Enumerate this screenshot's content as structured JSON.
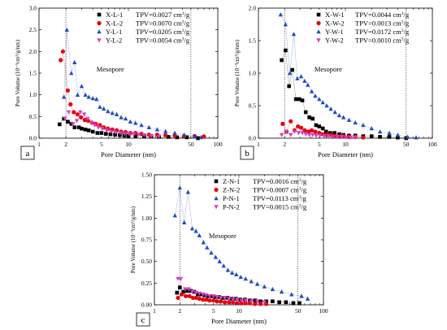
{
  "chart_data": [
    {
      "type": "scatter",
      "panel": "a",
      "xlabel": "Pore Diameter (nm)",
      "ylabel": "Pore Volume (10⁻³cm³/g/nm)",
      "xscale": "log",
      "xlim": [
        1,
        100
      ],
      "ylim": [
        0,
        3.0
      ],
      "xticks": [
        1,
        2,
        5,
        10,
        50,
        100
      ],
      "yticks": [
        0.0,
        0.5,
        1.0,
        1.5,
        2.0,
        2.5,
        3.0
      ],
      "ytick_labels": [
        "0.0",
        "0.5",
        "1.0",
        "1.5",
        "2.0",
        "2.5",
        "3.0"
      ],
      "vlines": [
        2,
        50
      ],
      "annotation": "Mesopore",
      "legend_position": "top-right",
      "series": [
        {
          "name": "X-L-1",
          "tpv": "TPV=0.0027 cm",
          "tpv_sup": "3",
          "tpv_unit": "/g",
          "marker": "square",
          "color": "#000000",
          "x": [
            1.7,
            1.9,
            2.1,
            2.3,
            2.5,
            2.8,
            3.0,
            3.3,
            3.6,
            4.0,
            4.5,
            5.0,
            5.6,
            6.3,
            7.1,
            8.0,
            9.0,
            10.0,
            12.0,
            15.0,
            18.0,
            22.0,
            28.0,
            35.0,
            45.0,
            60.0
          ],
          "y": [
            0.32,
            0.45,
            0.38,
            0.33,
            0.25,
            0.25,
            0.22,
            0.2,
            0.18,
            0.15,
            0.12,
            0.12,
            0.1,
            0.09,
            0.08,
            0.07,
            0.06,
            0.05,
            0.05,
            0.04,
            0.04,
            0.03,
            0.03,
            0.02,
            0.02,
            0.0
          ]
        },
        {
          "name": "X-L-2",
          "tpv": "TPV=0.0070 cm",
          "tpv_sup": "3",
          "tpv_unit": "/g",
          "marker": "circle",
          "color": "#e8000b",
          "x": [
            1.75,
            1.85,
            2.1,
            2.25,
            2.45,
            2.7,
            2.95,
            3.25,
            3.55,
            3.9,
            4.3,
            4.8,
            5.3,
            5.9,
            6.6,
            7.4,
            8.3,
            9.3,
            10.5,
            12.0,
            14.0,
            17.0,
            21.0,
            26.0,
            33.0,
            42.0,
            55.0,
            70.0
          ],
          "y": [
            1.8,
            2.0,
            1.1,
            0.78,
            0.6,
            0.55,
            0.48,
            0.42,
            0.4,
            0.36,
            0.33,
            0.3,
            0.25,
            0.22,
            0.2,
            0.18,
            0.15,
            0.14,
            0.12,
            0.12,
            0.1,
            0.08,
            0.08,
            0.07,
            0.06,
            0.05,
            0.05,
            0.04
          ]
        },
        {
          "name": "Y-L-1",
          "tpv": "TPV=0.0205 cm",
          "tpv_sup": "3",
          "tpv_unit": "/g",
          "marker": "triangle-up",
          "color": "#1f4fbf",
          "x": [
            1.9,
            2.05,
            2.3,
            2.5,
            2.7,
            3.0,
            3.3,
            3.6,
            4.0,
            4.4,
            4.8,
            5.3,
            5.9,
            6.6,
            7.4,
            8.3,
            9.3,
            10.5,
            12.0,
            14.0,
            17.0,
            21.0,
            26.0,
            33.0,
            42.0,
            55.0,
            65.0
          ],
          "y": [
            0.95,
            2.5,
            1.5,
            1.75,
            1.0,
            1.2,
            1.0,
            0.95,
            0.92,
            0.9,
            0.72,
            0.68,
            0.62,
            0.58,
            0.55,
            0.48,
            0.45,
            0.38,
            0.35,
            0.3,
            0.25,
            0.2,
            0.16,
            0.12,
            0.08,
            0.04,
            0.02
          ]
        },
        {
          "name": "Y-L-2",
          "tpv": "TPV=0.0054 cm",
          "tpv_sup": "3",
          "tpv_unit": "/g",
          "marker": "triangle-down",
          "color": "#d43fc4",
          "x": [
            1.95,
            2.15,
            2.4,
            2.65,
            2.9,
            3.2,
            3.5,
            3.85,
            4.2,
            4.6,
            5.1,
            5.7,
            6.4,
            7.2,
            8.1,
            9.1,
            10.2,
            11.5,
            13.0,
            15.0,
            18.0,
            22.0
          ],
          "y": [
            0.45,
            0.6,
            0.32,
            0.4,
            0.6,
            0.55,
            0.45,
            0.35,
            0.3,
            0.25,
            0.22,
            0.18,
            0.15,
            0.13,
            0.12,
            0.1,
            0.1,
            0.09,
            0.08,
            0.07,
            0.05,
            0.04
          ]
        }
      ]
    },
    {
      "type": "scatter",
      "panel": "b",
      "xlabel": "Pore Diameter (nm)",
      "ylabel": "Pore Volume (10⁻³cm³/g/nm)",
      "xscale": "log",
      "xlim": [
        1,
        100
      ],
      "ylim": [
        0,
        2.0
      ],
      "xticks": [
        1,
        2,
        5,
        10,
        50,
        100
      ],
      "yticks": [
        0.0,
        0.5,
        1.0,
        1.5,
        2.0
      ],
      "ytick_labels": [
        "0.0",
        "0.5",
        "1.0",
        "1.5",
        "2.0"
      ],
      "vlines": [
        2,
        50
      ],
      "annotation": "Mesopore",
      "legend_position": "top-right",
      "series": [
        {
          "name": "X-W-1",
          "tpv": "TPV=0.0044 cm",
          "tpv_sup": "3",
          "tpv_unit": "/g",
          "marker": "square",
          "color": "#000000",
          "x": [
            1.85,
            2.05,
            2.25,
            2.45,
            2.7,
            2.95,
            3.2,
            3.5,
            3.85,
            4.2,
            4.6,
            5.0,
            5.5,
            6.0,
            6.7,
            7.5,
            8.5,
            9.5,
            11.0,
            13.0,
            16.0,
            20.0,
            25.0,
            32.0,
            40.0,
            50.0
          ],
          "y": [
            1.2,
            1.35,
            0.8,
            1.05,
            0.6,
            0.6,
            0.58,
            0.4,
            0.32,
            0.3,
            0.2,
            0.18,
            0.15,
            0.1,
            0.08,
            0.08,
            0.06,
            0.05,
            0.04,
            0.04,
            0.03,
            0.03,
            0.02,
            0.02,
            0.01,
            0.0
          ]
        },
        {
          "name": "X-W-2",
          "tpv": "TPV=0.0013 cm",
          "tpv_sup": "3",
          "tpv_unit": "/g",
          "marker": "circle",
          "color": "#e8000b",
          "x": [
            1.9,
            2.1,
            2.35,
            2.6,
            2.85,
            3.1,
            3.4,
            3.75,
            4.1,
            4.5,
            5.0,
            5.5,
            6.1,
            6.8,
            7.6,
            8.5,
            9.5,
            11.0,
            13.0,
            16.0
          ],
          "y": [
            0.22,
            0.1,
            0.26,
            0.12,
            0.18,
            0.16,
            0.12,
            0.1,
            0.12,
            0.1,
            0.08,
            0.06,
            0.05,
            0.05,
            0.04,
            0.03,
            0.03,
            0.02,
            0.02,
            0.01
          ]
        },
        {
          "name": "Y-W-1",
          "tpv": "TPV=0.0172 cm",
          "tpv_sup": "3",
          "tpv_unit": "/g",
          "marker": "triangle-up",
          "color": "#1f4fbf",
          "x": [
            1.8,
            2.05,
            2.3,
            2.55,
            2.8,
            3.1,
            3.4,
            3.7,
            4.1,
            4.5,
            5.0,
            5.5,
            6.1,
            6.8,
            7.6,
            8.5,
            9.5,
            11.0,
            13.0,
            16.0,
            20.0,
            25.0,
            32.0,
            40.0,
            52.0,
            65.0
          ],
          "y": [
            1.9,
            1.75,
            1.0,
            1.6,
            0.92,
            0.95,
            0.88,
            0.82,
            0.72,
            0.65,
            0.6,
            0.55,
            0.5,
            0.45,
            0.4,
            0.35,
            0.32,
            0.28,
            0.24,
            0.2,
            0.15,
            0.1,
            0.08,
            0.05,
            0.02,
            0.01
          ]
        },
        {
          "name": "Y-W-2",
          "tpv": "TPV=0.0010 cm",
          "tpv_sup": "3",
          "tpv_unit": "/g",
          "marker": "triangle-down",
          "color": "#d43fc4",
          "x": [
            1.85,
            2.1,
            2.35,
            2.6,
            2.9,
            3.2,
            3.5,
            3.85,
            4.2,
            4.6,
            5.1,
            5.7,
            6.4,
            7.2,
            8.1,
            9.1,
            10.2,
            11.5,
            13.0
          ],
          "y": [
            0.05,
            0.1,
            0.05,
            0.1,
            0.08,
            0.08,
            0.06,
            0.05,
            0.05,
            0.04,
            0.04,
            0.03,
            0.03,
            0.02,
            0.02,
            0.02,
            0.01,
            0.01,
            0.01
          ]
        }
      ]
    },
    {
      "type": "scatter",
      "panel": "c",
      "xlabel": "Pore Diameter (nm)",
      "ylabel": "Pore Volume (10⁻³cm³/g/nm)",
      "xscale": "log",
      "xlim": [
        1,
        100
      ],
      "ylim": [
        0,
        1.5
      ],
      "xticks": [
        1,
        2,
        5,
        10,
        50,
        100
      ],
      "yticks": [
        0.0,
        0.25,
        0.5,
        0.75,
        1.0,
        1.25,
        1.5
      ],
      "ytick_labels": [
        "0.00",
        "0.25",
        "0.50",
        "0.75",
        "1.00",
        "1.25",
        "1.50"
      ],
      "vlines": [
        2,
        50
      ],
      "annotation": "Mesopore",
      "legend_position": "top-right",
      "series": [
        {
          "name": "Z-N-1",
          "tpv": "TPV=0.0016 cm",
          "tpv_sup": "3",
          "tpv_unit": "/g",
          "marker": "square",
          "color": "#000000",
          "x": [
            1.85,
            2.0,
            2.2,
            2.45,
            2.7,
            2.95,
            3.25,
            3.55,
            3.9,
            4.3,
            4.7,
            5.2,
            5.8,
            6.5,
            7.3,
            8.2,
            9.2,
            10.4,
            11.8,
            13.5,
            15.5,
            18.0,
            21.0,
            25.0,
            30.0,
            36.0,
            44.0,
            52.0
          ],
          "y": [
            0.14,
            0.2,
            0.15,
            0.16,
            0.16,
            0.15,
            0.12,
            0.12,
            0.11,
            0.1,
            0.1,
            0.09,
            0.09,
            0.08,
            0.08,
            0.07,
            0.07,
            0.06,
            0.06,
            0.05,
            0.05,
            0.04,
            0.04,
            0.04,
            0.03,
            0.03,
            0.02,
            0.02
          ]
        },
        {
          "name": "Z-N-2",
          "tpv": "TPV=0.0007 cm",
          "tpv_sup": "3",
          "tpv_unit": "/g",
          "marker": "circle",
          "color": "#e8000b",
          "x": [
            1.9,
            2.1,
            2.35,
            2.6,
            2.85,
            3.1,
            3.4,
            3.75,
            4.1,
            4.5,
            5.0,
            5.5,
            6.1,
            6.8,
            7.6,
            8.5,
            9.5,
            10.7,
            12.0,
            13.5,
            15.5,
            18.0,
            21.0
          ],
          "y": [
            0.08,
            0.12,
            0.1,
            0.1,
            0.08,
            0.08,
            0.07,
            0.06,
            0.06,
            0.05,
            0.05,
            0.04,
            0.04,
            0.03,
            0.03,
            0.03,
            0.02,
            0.02,
            0.02,
            0.02,
            0.01,
            0.01,
            0.01
          ]
        },
        {
          "name": "P-N-1",
          "tpv": "TPV=0.0113 cm",
          "tpv_sup": "3",
          "tpv_unit": "/g",
          "marker": "triangle-up",
          "color": "#1f4fbf",
          "x": [
            1.75,
            2.0,
            2.25,
            2.5,
            2.8,
            3.1,
            3.4,
            3.8,
            4.2,
            4.7,
            5.3,
            5.9,
            6.6,
            7.4,
            8.3,
            9.3,
            10.5,
            12.0,
            14.0,
            16.5,
            20.0,
            25.0,
            32.0,
            42.0,
            55.0,
            65.0
          ],
          "y": [
            1.03,
            1.35,
            0.95,
            1.3,
            0.88,
            0.85,
            0.8,
            0.72,
            0.66,
            0.6,
            0.55,
            0.5,
            0.45,
            0.4,
            0.37,
            0.35,
            0.32,
            0.3,
            0.27,
            0.24,
            0.21,
            0.18,
            0.15,
            0.12,
            0.1,
            0.07
          ]
        },
        {
          "name": "P-N-2",
          "tpv": "TPV=0.0015 cm",
          "tpv_sup": "3",
          "tpv_unit": "/g",
          "marker": "triangle-down",
          "color": "#d43fc4",
          "x": [
            1.9,
            2.05,
            2.3,
            2.55,
            2.8,
            3.1,
            3.4,
            3.75,
            4.1,
            4.5,
            5.0,
            5.5,
            6.1,
            6.8,
            7.6,
            8.5,
            9.5,
            10.7,
            12.0,
            14.0,
            16.5,
            20.0
          ],
          "y": [
            0.3,
            0.3,
            0.18,
            0.18,
            0.15,
            0.14,
            0.13,
            0.12,
            0.11,
            0.1,
            0.1,
            0.09,
            0.08,
            0.08,
            0.07,
            0.06,
            0.06,
            0.05,
            0.05,
            0.04,
            0.04,
            0.03
          ]
        }
      ]
    }
  ]
}
